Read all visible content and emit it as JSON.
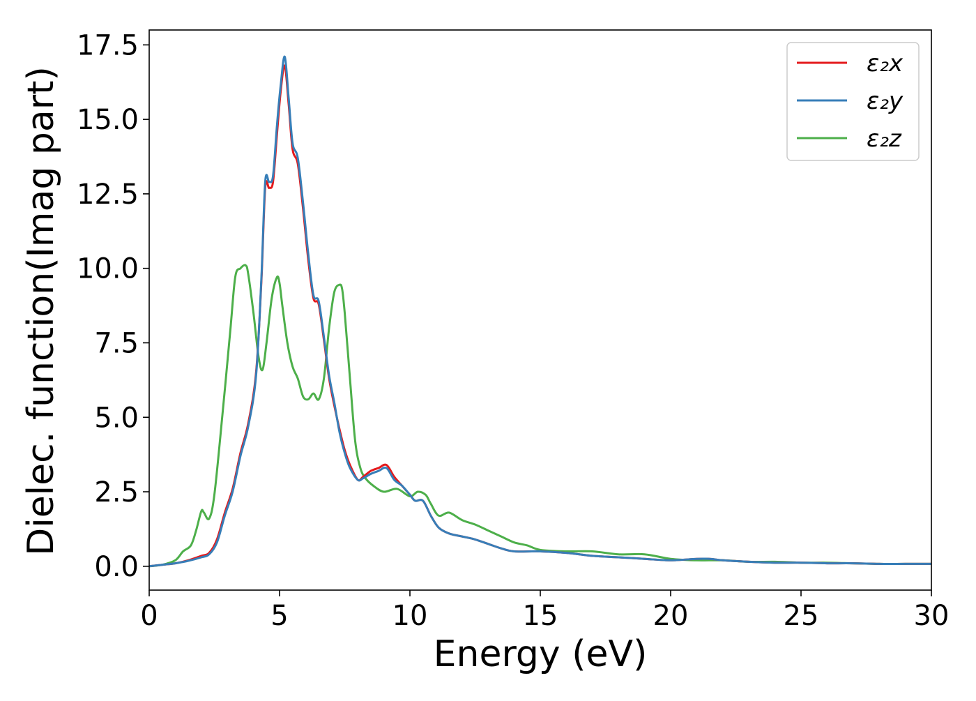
{
  "chart_data": {
    "type": "line",
    "title": "",
    "xlabel": "Energy (eV)",
    "ylabel": "Dielec. function(Imag part)",
    "xlim": [
      0,
      30
    ],
    "ylim": [
      -0.8,
      18.0
    ],
    "xticks": [
      0,
      5,
      10,
      15,
      20,
      25,
      30
    ],
    "xtick_labels": [
      "0",
      "5",
      "10",
      "15",
      "20",
      "25",
      "30"
    ],
    "yticks": [
      0.0,
      2.5,
      5.0,
      7.5,
      10.0,
      12.5,
      15.0,
      17.5
    ],
    "ytick_labels": [
      "0.0",
      "2.5",
      "5.0",
      "7.5",
      "10.0",
      "12.5",
      "15.0",
      "17.5"
    ],
    "grid": false,
    "legend_position": "top-right",
    "series": [
      {
        "name": "ε₂x",
        "color": "#e41a1c",
        "x": [
          0,
          0.5,
          1.0,
          1.5,
          2.0,
          2.3,
          2.6,
          2.9,
          3.2,
          3.5,
          3.8,
          4.1,
          4.3,
          4.45,
          4.6,
          4.75,
          4.9,
          5.05,
          5.2,
          5.35,
          5.5,
          5.7,
          5.9,
          6.1,
          6.3,
          6.5,
          6.7,
          6.9,
          7.1,
          7.3,
          7.5,
          7.7,
          8.0,
          8.2,
          8.5,
          8.8,
          9.1,
          9.4,
          9.7,
          10.0,
          10.2,
          10.5,
          10.8,
          11.1,
          11.5,
          12.0,
          12.5,
          13.0,
          13.5,
          14.0,
          15.0,
          16.0,
          17.0,
          18.0,
          19.0,
          20.0,
          21.0,
          21.5,
          22.0,
          23.0,
          24.0,
          25.0,
          26.0,
          27.0,
          28.0,
          29.0,
          30.0
        ],
        "values": [
          0.0,
          0.05,
          0.1,
          0.2,
          0.35,
          0.45,
          0.9,
          1.8,
          2.6,
          3.8,
          4.8,
          6.5,
          9.5,
          12.7,
          12.7,
          12.9,
          14.5,
          16.0,
          16.8,
          15.5,
          14.0,
          13.5,
          12.0,
          10.3,
          9.0,
          8.8,
          7.6,
          6.3,
          5.4,
          4.6,
          3.9,
          3.4,
          2.9,
          3.0,
          3.2,
          3.3,
          3.4,
          3.0,
          2.7,
          2.4,
          2.2,
          2.2,
          1.7,
          1.3,
          1.1,
          1.0,
          0.9,
          0.75,
          0.6,
          0.5,
          0.5,
          0.45,
          0.35,
          0.3,
          0.25,
          0.2,
          0.25,
          0.25,
          0.2,
          0.15,
          0.12,
          0.12,
          0.1,
          0.1,
          0.08,
          0.08,
          0.08
        ]
      },
      {
        "name": "ε₂y",
        "color": "#377eb8",
        "x": [
          0,
          0.5,
          1.0,
          1.5,
          2.0,
          2.3,
          2.6,
          2.9,
          3.2,
          3.5,
          3.8,
          4.1,
          4.3,
          4.45,
          4.6,
          4.75,
          4.9,
          5.05,
          5.2,
          5.35,
          5.5,
          5.7,
          5.9,
          6.1,
          6.3,
          6.5,
          6.7,
          6.9,
          7.1,
          7.3,
          7.5,
          7.7,
          8.0,
          8.2,
          8.5,
          8.8,
          9.1,
          9.4,
          9.7,
          10.0,
          10.2,
          10.5,
          10.8,
          11.1,
          11.5,
          12.0,
          12.5,
          13.0,
          13.5,
          14.0,
          15.0,
          16.0,
          17.0,
          18.0,
          19.0,
          20.0,
          21.0,
          21.5,
          22.0,
          23.0,
          24.0,
          25.0,
          26.0,
          27.0,
          28.0,
          29.0,
          30.0
        ],
        "values": [
          0.0,
          0.05,
          0.1,
          0.18,
          0.3,
          0.4,
          0.8,
          1.7,
          2.5,
          3.7,
          4.7,
          6.4,
          9.6,
          12.9,
          12.9,
          13.1,
          14.8,
          16.2,
          17.1,
          15.7,
          14.2,
          13.7,
          12.2,
          10.5,
          9.1,
          8.9,
          7.7,
          6.4,
          5.5,
          4.5,
          3.8,
          3.3,
          2.9,
          2.95,
          3.1,
          3.2,
          3.3,
          2.9,
          2.7,
          2.4,
          2.2,
          2.2,
          1.7,
          1.3,
          1.1,
          1.0,
          0.9,
          0.75,
          0.6,
          0.5,
          0.5,
          0.45,
          0.35,
          0.3,
          0.25,
          0.2,
          0.25,
          0.25,
          0.2,
          0.15,
          0.12,
          0.12,
          0.1,
          0.1,
          0.08,
          0.08,
          0.08
        ]
      },
      {
        "name": "ε₂z",
        "color": "#4daf4a",
        "x": [
          0,
          0.5,
          1.0,
          1.3,
          1.6,
          1.8,
          2.0,
          2.1,
          2.3,
          2.5,
          2.8,
          3.1,
          3.3,
          3.5,
          3.7,
          3.8,
          4.0,
          4.2,
          4.35,
          4.5,
          4.7,
          4.9,
          5.0,
          5.1,
          5.3,
          5.5,
          5.7,
          5.9,
          6.1,
          6.3,
          6.5,
          6.7,
          6.9,
          7.1,
          7.3,
          7.4,
          7.5,
          7.7,
          7.9,
          8.1,
          8.3,
          8.6,
          9.0,
          9.5,
          10.0,
          10.3,
          10.6,
          10.8,
          11.1,
          11.5,
          12.0,
          12.5,
          13.0,
          13.5,
          14.0,
          14.5,
          15.0,
          16.0,
          17.0,
          18.0,
          19.0,
          20.0,
          21.0,
          22.0,
          23.0,
          24.0,
          25.0,
          26.0,
          27.0,
          28.0,
          29.0,
          30.0
        ],
        "values": [
          0.0,
          0.05,
          0.2,
          0.5,
          0.7,
          1.2,
          1.85,
          1.8,
          1.6,
          2.4,
          5.0,
          7.8,
          9.7,
          10.0,
          10.1,
          9.8,
          8.5,
          7.0,
          6.6,
          7.5,
          9.0,
          9.7,
          9.5,
          8.8,
          7.5,
          6.7,
          6.3,
          5.7,
          5.6,
          5.8,
          5.6,
          6.3,
          8.0,
          9.2,
          9.45,
          9.3,
          8.5,
          6.3,
          4.2,
          3.3,
          2.95,
          2.7,
          2.5,
          2.6,
          2.35,
          2.5,
          2.4,
          2.1,
          1.7,
          1.8,
          1.55,
          1.4,
          1.2,
          1.0,
          0.8,
          0.7,
          0.55,
          0.5,
          0.5,
          0.4,
          0.4,
          0.25,
          0.2,
          0.2,
          0.15,
          0.15,
          0.12,
          0.12,
          0.1,
          0.08,
          0.08,
          0.08
        ]
      }
    ]
  }
}
